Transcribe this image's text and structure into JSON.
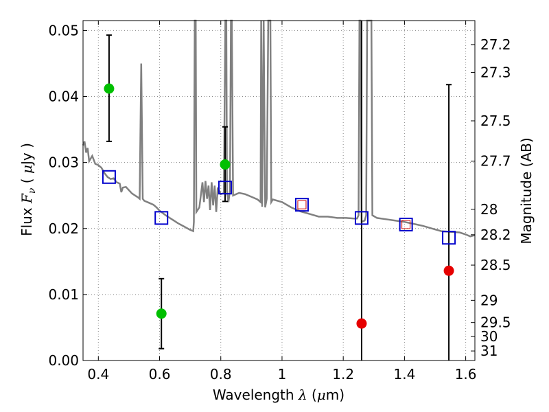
{
  "chart_data": {
    "type": "scatter",
    "xlabel": "Wavelength  λ (μm)",
    "ylabel": "Flux  F_ν  ( μJy )",
    "y2label": "Magnitude (AB)",
    "xlim": [
      0.35,
      1.63
    ],
    "ylim": [
      0.0,
      0.0515
    ],
    "grid": true,
    "xticks": [
      0.4,
      0.6,
      0.8,
      1.0,
      1.2,
      1.4,
      1.6
    ],
    "xtick_labels": [
      "0.4",
      "0.6",
      "0.8",
      "1",
      "1.2",
      "1.4",
      "1.6"
    ],
    "yticks": [
      0.0,
      0.01,
      0.02,
      0.03,
      0.04,
      0.05
    ],
    "ytick_labels": [
      "0.00",
      "0.01",
      "0.02",
      "0.03",
      "0.04",
      "0.05"
    ],
    "y2ticks": [
      {
        "label": "27.2",
        "mag": 27.2
      },
      {
        "label": "27.3",
        "mag": 27.3
      },
      {
        "label": "27.5",
        "mag": 27.5
      },
      {
        "label": "27.7",
        "mag": 27.7
      },
      {
        "label": "28",
        "mag": 28.0
      },
      {
        "label": "28.2",
        "mag": 28.2
      },
      {
        "label": "28.5",
        "mag": 28.5
      },
      {
        "label": "29",
        "mag": 29.0
      },
      {
        "label": "29.5",
        "mag": 29.5
      },
      {
        "label": "30",
        "mag": 30.0
      },
      {
        "label": "31",
        "mag": 31.0
      }
    ],
    "colors": {
      "spectrum": "#808080",
      "green": "#00bf00",
      "red": "#e60000",
      "model_box": "#0000cc",
      "model_box_inner": "#cc0000",
      "errorbar": "#000000",
      "grid": "#888888"
    },
    "series": [
      {
        "marker": "circle-green",
        "points": [
          {
            "x": 0.435,
            "y": 0.0412,
            "ylo": 0.0332,
            "yhi": 0.0493
          },
          {
            "x": 0.606,
            "y": 0.0071,
            "ylo": 0.0018,
            "yhi": 0.0124
          },
          {
            "x": 0.814,
            "y": 0.0297,
            "ylo": 0.0241,
            "yhi": 0.0354
          }
        ]
      },
      {
        "marker": "circle-red",
        "points": [
          {
            "x": 1.26,
            "y": 0.0056,
            "ylo": 0.0,
            "yhi": 0.0515
          },
          {
            "x": 1.545,
            "y": 0.0136,
            "ylo": 0.0,
            "yhi": 0.0418
          }
        ]
      },
      {
        "marker": "square-model",
        "points": [
          {
            "x": 0.435,
            "y": 0.0278,
            "inner": false
          },
          {
            "x": 0.606,
            "y": 0.0216,
            "inner": false
          },
          {
            "x": 0.814,
            "y": 0.0262,
            "inner": false
          },
          {
            "x": 1.065,
            "y": 0.0236,
            "inner": true
          },
          {
            "x": 1.26,
            "y": 0.0216,
            "inner": false
          },
          {
            "x": 1.405,
            "y": 0.0206,
            "inner": true
          },
          {
            "x": 1.545,
            "y": 0.0186,
            "inner": false
          }
        ]
      }
    ],
    "spectrum": [
      [
        0.35,
        0.0326
      ],
      [
        0.355,
        0.0332
      ],
      [
        0.36,
        0.0315
      ],
      [
        0.365,
        0.0322
      ],
      [
        0.37,
        0.0302
      ],
      [
        0.38,
        0.031
      ],
      [
        0.39,
        0.0298
      ],
      [
        0.4,
        0.0296
      ],
      [
        0.41,
        0.0292
      ],
      [
        0.42,
        0.0284
      ],
      [
        0.43,
        0.0278
      ],
      [
        0.44,
        0.0275
      ],
      [
        0.45,
        0.0276
      ],
      [
        0.46,
        0.027
      ],
      [
        0.47,
        0.0268
      ],
      [
        0.475,
        0.0255
      ],
      [
        0.48,
        0.0262
      ],
      [
        0.49,
        0.0263
      ],
      [
        0.5,
        0.0258
      ],
      [
        0.51,
        0.0253
      ],
      [
        0.52,
        0.025
      ],
      [
        0.53,
        0.0247
      ],
      [
        0.535,
        0.0245
      ],
      [
        0.54,
        0.045
      ],
      [
        0.545,
        0.0245
      ],
      [
        0.55,
        0.0242
      ],
      [
        0.56,
        0.024
      ],
      [
        0.57,
        0.0238
      ],
      [
        0.58,
        0.0236
      ],
      [
        0.59,
        0.0232
      ],
      [
        0.6,
        0.0227
      ],
      [
        0.62,
        0.022
      ],
      [
        0.64,
        0.0214
      ],
      [
        0.66,
        0.0208
      ],
      [
        0.68,
        0.0203
      ],
      [
        0.7,
        0.0198
      ],
      [
        0.71,
        0.0196
      ],
      [
        0.712,
        0.021
      ],
      [
        0.715,
        0.0515
      ],
      [
        0.718,
        0.0515
      ],
      [
        0.72,
        0.0225
      ],
      [
        0.73,
        0.0232
      ],
      [
        0.74,
        0.027
      ],
      [
        0.745,
        0.024
      ],
      [
        0.75,
        0.0272
      ],
      [
        0.755,
        0.0245
      ],
      [
        0.76,
        0.0265
      ],
      [
        0.765,
        0.0228
      ],
      [
        0.77,
        0.027
      ],
      [
        0.775,
        0.0235
      ],
      [
        0.78,
        0.0265
      ],
      [
        0.785,
        0.0225
      ],
      [
        0.79,
        0.0262
      ],
      [
        0.8,
        0.0252
      ],
      [
        0.81,
        0.0254
      ],
      [
        0.815,
        0.0515
      ],
      [
        0.818,
        0.0515
      ],
      [
        0.82,
        0.0256
      ],
      [
        0.825,
        0.024
      ],
      [
        0.83,
        0.0258
      ],
      [
        0.833,
        0.0515
      ],
      [
        0.836,
        0.0515
      ],
      [
        0.84,
        0.025
      ],
      [
        0.86,
        0.0254
      ],
      [
        0.88,
        0.0252
      ],
      [
        0.9,
        0.0248
      ],
      [
        0.92,
        0.0244
      ],
      [
        0.93,
        0.024
      ],
      [
        0.932,
        0.0515
      ],
      [
        0.935,
        0.0233
      ],
      [
        0.94,
        0.0515
      ],
      [
        0.945,
        0.0232
      ],
      [
        0.95,
        0.0245
      ],
      [
        0.955,
        0.0515
      ],
      [
        0.958,
        0.0515
      ],
      [
        0.962,
        0.0515
      ],
      [
        0.965,
        0.024
      ],
      [
        0.97,
        0.0244
      ],
      [
        1.0,
        0.024
      ],
      [
        1.03,
        0.0232
      ],
      [
        1.06,
        0.0226
      ],
      [
        1.09,
        0.0222
      ],
      [
        1.12,
        0.0218
      ],
      [
        1.15,
        0.0218
      ],
      [
        1.18,
        0.0216
      ],
      [
        1.21,
        0.0216
      ],
      [
        1.235,
        0.0215
      ],
      [
        1.245,
        0.0215
      ],
      [
        1.25,
        0.022
      ],
      [
        1.253,
        0.0515
      ],
      [
        1.256,
        0.0515
      ],
      [
        1.26,
        0.021
      ],
      [
        1.27,
        0.0212
      ],
      [
        1.275,
        0.022
      ],
      [
        1.278,
        0.0515
      ],
      [
        1.29,
        0.0515
      ],
      [
        1.292,
        0.0515
      ],
      [
        1.295,
        0.022
      ],
      [
        1.31,
        0.0216
      ],
      [
        1.34,
        0.0214
      ],
      [
        1.37,
        0.0212
      ],
      [
        1.4,
        0.021
      ],
      [
        1.43,
        0.0207
      ],
      [
        1.46,
        0.0204
      ],
      [
        1.49,
        0.02
      ],
      [
        1.52,
        0.0196
      ],
      [
        1.55,
        0.0195
      ],
      [
        1.58,
        0.0194
      ],
      [
        1.6,
        0.0191
      ],
      [
        1.615,
        0.0188
      ],
      [
        1.63,
        0.019
      ]
    ]
  }
}
